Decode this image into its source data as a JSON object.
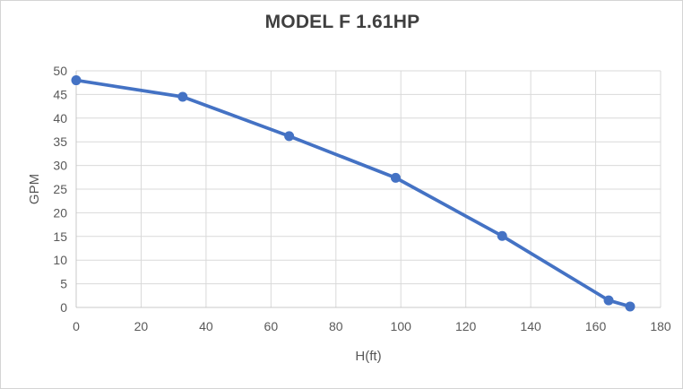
{
  "window": {
    "background": "#ffffff",
    "border_color": "#d4d4d4"
  },
  "chart_data": {
    "type": "line",
    "title": "MODEL F 1.61HP",
    "xlabel": "H(ft)",
    "ylabel": "GPM",
    "x": [
      0,
      32.8,
      65.6,
      98.4,
      131.2,
      164,
      170.6
    ],
    "y": [
      48,
      44.5,
      36.2,
      27.4,
      15.1,
      1.5,
      0.2
    ],
    "xlim": [
      0,
      180
    ],
    "ylim": [
      0,
      50
    ],
    "x_ticks": [
      0,
      20,
      40,
      60,
      80,
      100,
      120,
      140,
      160,
      180
    ],
    "y_ticks": [
      0,
      5,
      10,
      15,
      20,
      25,
      30,
      35,
      40,
      45,
      50
    ],
    "grid": true,
    "legend": false,
    "line_color": "#4472C4",
    "marker_color": "#4472C4",
    "gridline_color": "#D9D9D9",
    "axis_line_color": "#C8C8C8",
    "tick_label_color": "#595959",
    "title_color": "#3f3f3f"
  }
}
